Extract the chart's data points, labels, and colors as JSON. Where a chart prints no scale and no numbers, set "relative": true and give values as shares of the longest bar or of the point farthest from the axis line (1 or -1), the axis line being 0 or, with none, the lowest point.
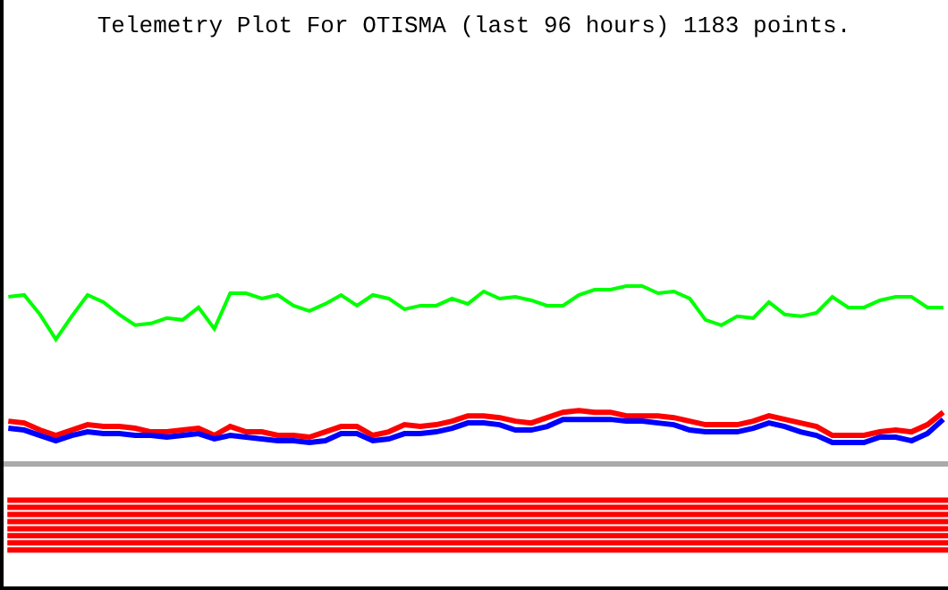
{
  "chart_data": {
    "type": "line",
    "title": "Telemetry Plot For OTISMA (last 96 hours) 1183 points.",
    "relative": true,
    "grid": false,
    "marker": "none",
    "line_style": "solid",
    "categories": [
      null,
      null,
      null,
      null,
      null,
      null,
      null,
      null,
      null,
      null,
      null,
      null,
      null,
      null,
      null,
      null,
      null,
      null,
      null,
      null,
      null,
      null,
      null,
      null,
      null,
      null,
      null,
      null,
      null,
      null,
      null,
      null,
      null,
      null,
      null,
      null,
      null,
      null,
      null,
      null,
      null,
      null,
      null,
      null,
      null,
      null,
      null,
      null,
      null,
      null,
      null,
      null,
      null,
      null,
      null,
      null,
      null,
      null,
      null,
      null
    ],
    "series": [
      {
        "color": "#00ff00",
        "values": [
          0.94,
          0.95,
          0.84,
          0.7,
          0.83,
          0.95,
          0.91,
          0.84,
          0.78,
          0.79,
          0.82,
          0.81,
          0.88,
          0.76,
          0.96,
          0.96,
          0.93,
          0.95,
          0.89,
          0.86,
          0.9,
          0.95,
          0.89,
          0.95,
          0.93,
          0.87,
          0.89,
          0.89,
          0.93,
          0.9,
          0.97,
          0.93,
          0.94,
          0.92,
          0.89,
          0.89,
          0.95,
          0.98,
          0.98,
          1.0,
          1.0,
          0.96,
          0.97,
          0.93,
          0.81,
          0.78,
          0.83,
          0.82,
          0.91,
          0.84,
          0.83,
          0.85,
          0.94,
          0.88,
          0.88,
          0.92,
          0.94,
          0.94,
          0.88,
          0.88
        ]
      },
      {
        "color": "#ff0000",
        "values": [
          0.24,
          0.23,
          0.19,
          0.16,
          0.19,
          0.22,
          0.21,
          0.21,
          0.2,
          0.18,
          0.18,
          0.19,
          0.2,
          0.16,
          0.21,
          0.18,
          0.18,
          0.16,
          0.16,
          0.15,
          0.18,
          0.21,
          0.21,
          0.16,
          0.18,
          0.22,
          0.21,
          0.22,
          0.24,
          0.27,
          0.27,
          0.26,
          0.24,
          0.23,
          0.26,
          0.29,
          0.3,
          0.29,
          0.29,
          0.27,
          0.27,
          0.27,
          0.26,
          0.24,
          0.22,
          0.22,
          0.22,
          0.24,
          0.27,
          0.25,
          0.23,
          0.21,
          0.16,
          0.16,
          0.16,
          0.18,
          0.19,
          0.18,
          0.22,
          0.29
        ]
      },
      {
        "color": "#0000ff",
        "values": [
          0.2,
          0.19,
          0.16,
          0.13,
          0.16,
          0.18,
          0.17,
          0.17,
          0.16,
          0.16,
          0.15,
          0.16,
          0.17,
          0.14,
          0.16,
          0.15,
          0.14,
          0.13,
          0.13,
          0.12,
          0.13,
          0.17,
          0.17,
          0.13,
          0.14,
          0.17,
          0.17,
          0.18,
          0.2,
          0.23,
          0.23,
          0.22,
          0.19,
          0.19,
          0.21,
          0.25,
          0.25,
          0.25,
          0.25,
          0.24,
          0.24,
          0.23,
          0.22,
          0.19,
          0.18,
          0.18,
          0.18,
          0.2,
          0.23,
          0.21,
          0.18,
          0.16,
          0.12,
          0.12,
          0.12,
          0.15,
          0.15,
          0.13,
          0.17,
          0.25
        ]
      }
    ],
    "bands": [
      {
        "axis": "y",
        "from": -0.19,
        "to": -0.22,
        "color": "#ff0000"
      },
      {
        "axis": "y",
        "from": -0.23,
        "to": -0.26,
        "color": "#ff0000"
      },
      {
        "axis": "y",
        "from": -0.27,
        "to": -0.3,
        "color": "#ff0000"
      },
      {
        "axis": "y",
        "from": -0.31,
        "to": -0.34,
        "color": "#ff0000"
      },
      {
        "axis": "y",
        "from": -0.35,
        "to": -0.38,
        "color": "#ff0000"
      },
      {
        "axis": "y",
        "from": -0.39,
        "to": -0.42,
        "color": "#ff0000"
      },
      {
        "axis": "y",
        "from": -0.43,
        "to": -0.46,
        "color": "#ff0000"
      },
      {
        "axis": "y",
        "from": -0.47,
        "to": -0.5,
        "color": "#ff0000"
      }
    ]
  }
}
